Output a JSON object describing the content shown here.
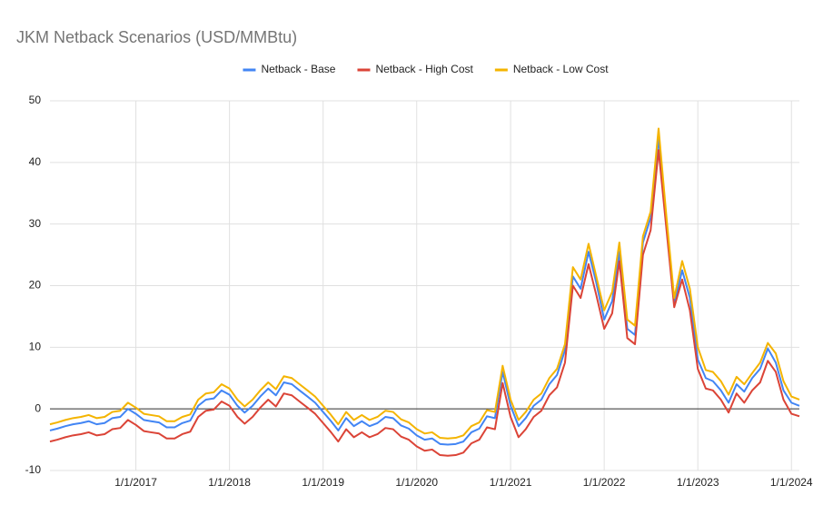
{
  "chart_data": {
    "type": "line",
    "title": "JKM Netback Scenarios (USD/MMBtu)",
    "x": [
      "2/1/2016",
      "3/1/2016",
      "4/1/2016",
      "5/1/2016",
      "6/1/2016",
      "7/1/2016",
      "8/1/2016",
      "9/1/2016",
      "10/1/2016",
      "11/1/2016",
      "12/1/2016",
      "1/1/2017",
      "2/1/2017",
      "3/1/2017",
      "4/1/2017",
      "5/1/2017",
      "6/1/2017",
      "7/1/2017",
      "8/1/2017",
      "9/1/2017",
      "10/1/2017",
      "11/1/2017",
      "12/1/2017",
      "1/1/2018",
      "2/1/2018",
      "3/1/2018",
      "4/1/2018",
      "5/1/2018",
      "6/1/2018",
      "7/1/2018",
      "8/1/2018",
      "9/1/2018",
      "10/1/2018",
      "11/1/2018",
      "12/1/2018",
      "1/1/2019",
      "2/1/2019",
      "3/1/2019",
      "4/1/2019",
      "5/1/2019",
      "6/1/2019",
      "7/1/2019",
      "8/1/2019",
      "9/1/2019",
      "10/1/2019",
      "11/1/2019",
      "12/1/2019",
      "1/1/2020",
      "2/1/2020",
      "3/1/2020",
      "4/1/2020",
      "5/1/2020",
      "6/1/2020",
      "7/1/2020",
      "8/1/2020",
      "9/1/2020",
      "10/1/2020",
      "11/1/2020",
      "12/1/2020",
      "1/1/2021",
      "2/1/2021",
      "3/1/2021",
      "4/1/2021",
      "5/1/2021",
      "6/1/2021",
      "7/1/2021",
      "8/1/2021",
      "9/1/2021",
      "10/1/2021",
      "11/1/2021",
      "12/1/2021",
      "1/1/2022",
      "2/1/2022",
      "3/1/2022",
      "4/1/2022",
      "5/1/2022",
      "6/1/2022",
      "7/1/2022",
      "8/1/2022",
      "9/1/2022",
      "10/1/2022",
      "11/1/2022",
      "12/1/2022",
      "1/1/2023",
      "2/1/2023",
      "3/1/2023",
      "4/1/2023",
      "5/1/2023",
      "6/1/2023",
      "7/1/2023",
      "8/1/2023",
      "9/1/2023",
      "10/1/2023",
      "11/1/2023",
      "12/1/2023",
      "1/1/2024",
      "2/1/2024"
    ],
    "series": [
      {
        "name": "Netback - Base",
        "color": "#4285f4",
        "values": [
          -3.5,
          -3.2,
          -2.8,
          -2.5,
          -2.3,
          -2.0,
          -2.5,
          -2.3,
          -1.5,
          -1.3,
          0.0,
          -0.8,
          -1.8,
          -2.0,
          -2.2,
          -3.0,
          -3.0,
          -2.3,
          -1.9,
          0.5,
          1.5,
          1.7,
          3.0,
          2.3,
          0.5,
          -0.6,
          0.5,
          2.0,
          3.3,
          2.2,
          4.3,
          4.0,
          3.0,
          2.0,
          1.0,
          -0.5,
          -2.0,
          -3.5,
          -1.5,
          -2.8,
          -2.0,
          -2.8,
          -2.3,
          -1.3,
          -1.5,
          -2.7,
          -3.2,
          -4.3,
          -5.0,
          -4.8,
          -5.7,
          -5.8,
          -5.7,
          -5.3,
          -3.8,
          -3.2,
          -1.2,
          -1.5,
          6.0,
          0.5,
          -2.8,
          -1.5,
          0.5,
          1.5,
          4.0,
          5.5,
          9.5,
          21.5,
          19.5,
          25.5,
          20.5,
          14.5,
          17.5,
          25.5,
          13.0,
          12.0,
          27.0,
          31.0,
          44.0,
          30.0,
          17.0,
          22.5,
          18.0,
          8.0,
          5.0,
          4.5,
          3.0,
          1.0,
          4.0,
          2.8,
          5.0,
          6.5,
          9.8,
          7.5,
          3.0,
          1.0,
          0.5
        ]
      },
      {
        "name": "Netback - High Cost",
        "color": "#db4437",
        "values": [
          -5.3,
          -5.0,
          -4.6,
          -4.3,
          -4.1,
          -3.8,
          -4.3,
          -4.1,
          -3.3,
          -3.1,
          -1.8,
          -2.6,
          -3.6,
          -3.8,
          -4.0,
          -4.8,
          -4.8,
          -4.1,
          -3.7,
          -1.3,
          -0.3,
          -0.1,
          1.2,
          0.5,
          -1.3,
          -2.4,
          -1.3,
          0.2,
          1.5,
          0.4,
          2.5,
          2.2,
          1.2,
          0.2,
          -0.8,
          -2.3,
          -3.8,
          -5.3,
          -3.3,
          -4.6,
          -3.8,
          -4.6,
          -4.1,
          -3.1,
          -3.3,
          -4.5,
          -5.0,
          -6.1,
          -6.8,
          -6.6,
          -7.5,
          -7.6,
          -7.5,
          -7.1,
          -5.6,
          -5.0,
          -3.0,
          -3.3,
          4.2,
          -1.3,
          -4.6,
          -3.3,
          -1.3,
          -0.3,
          2.2,
          3.5,
          7.5,
          20.0,
          18.0,
          23.5,
          18.5,
          13.0,
          15.5,
          24.0,
          11.5,
          10.5,
          25.0,
          29.0,
          42.0,
          29.0,
          16.5,
          21.0,
          16.0,
          6.5,
          3.3,
          3.0,
          1.5,
          -0.6,
          2.5,
          1.0,
          3.0,
          4.3,
          7.8,
          6.0,
          1.5,
          -0.8,
          -1.2
        ]
      },
      {
        "name": "Netback - Low Cost",
        "color": "#f4b400",
        "values": [
          -2.5,
          -2.2,
          -1.8,
          -1.5,
          -1.3,
          -1.0,
          -1.5,
          -1.3,
          -0.5,
          -0.3,
          1.0,
          0.2,
          -0.8,
          -1.0,
          -1.2,
          -2.0,
          -2.0,
          -1.3,
          -0.9,
          1.5,
          2.5,
          2.7,
          4.0,
          3.3,
          1.5,
          0.4,
          1.5,
          3.0,
          4.3,
          3.2,
          5.3,
          5.0,
          4.0,
          3.0,
          2.0,
          0.5,
          -1.0,
          -2.5,
          -0.5,
          -1.8,
          -1.0,
          -1.8,
          -1.3,
          -0.3,
          -0.5,
          -1.7,
          -2.2,
          -3.3,
          -4.0,
          -3.8,
          -4.7,
          -4.8,
          -4.7,
          -4.3,
          -2.8,
          -2.2,
          -0.2,
          -0.5,
          7.0,
          1.5,
          -1.8,
          -0.5,
          1.5,
          2.5,
          5.0,
          6.5,
          10.5,
          23.0,
          21.0,
          26.8,
          21.5,
          16.0,
          19.0,
          27.0,
          14.5,
          13.5,
          28.0,
          32.0,
          45.5,
          31.0,
          18.0,
          24.0,
          19.5,
          10.0,
          6.3,
          6.0,
          4.5,
          2.3,
          5.2,
          4.0,
          5.8,
          7.5,
          10.7,
          9.0,
          4.5,
          2.0,
          1.5
        ]
      }
    ],
    "xlim": [
      "2/1/2016",
      "2/1/2024"
    ],
    "xticks": [
      "1/1/2017",
      "1/1/2018",
      "1/1/2019",
      "1/1/2020",
      "1/1/2021",
      "1/1/2022",
      "1/1/2023",
      "1/1/2024"
    ],
    "ylim": [
      -10,
      50
    ],
    "yticks": [
      -10,
      0,
      10,
      20,
      30,
      40,
      50
    ],
    "grid": true,
    "legend": "top"
  }
}
